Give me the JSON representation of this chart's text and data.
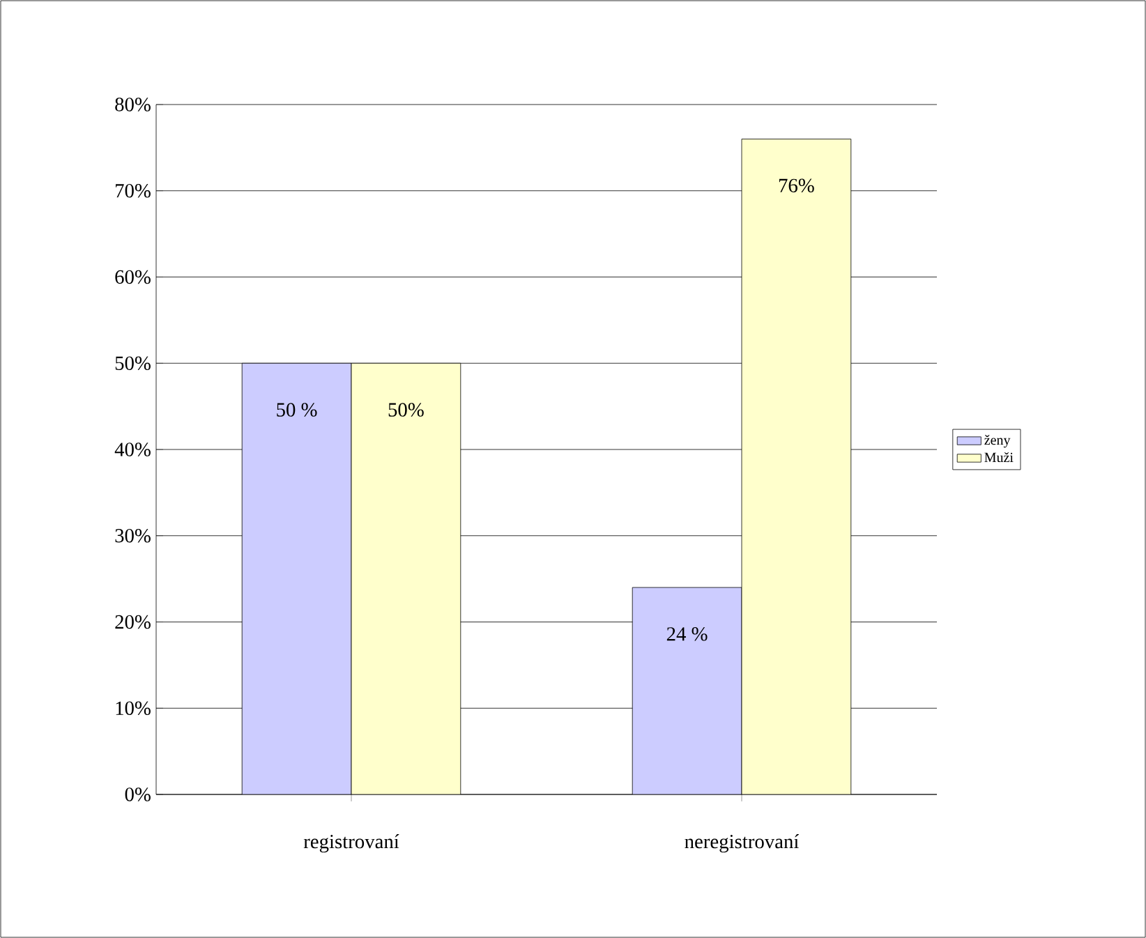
{
  "chart_data": {
    "type": "bar",
    "categories": [
      "registrovaní",
      "neregistrovaní"
    ],
    "series": [
      {
        "name": "ženy",
        "color": "#ccccff",
        "values": [
          50,
          24
        ],
        "value_labels": [
          "50 %",
          "24 %"
        ]
      },
      {
        "name": "Muži",
        "color": "#ffffcc",
        "values": [
          50,
          76
        ],
        "value_labels": [
          "50%",
          "76%"
        ]
      }
    ],
    "ylim": [
      0,
      80
    ],
    "yticks": [
      {
        "value": 0,
        "label": "0%"
      },
      {
        "value": 10,
        "label": "10%"
      },
      {
        "value": 20,
        "label": "20%"
      },
      {
        "value": 30,
        "label": "30%"
      },
      {
        "value": 40,
        "label": "40%"
      },
      {
        "value": 50,
        "label": "50%"
      },
      {
        "value": 60,
        "label": "60%"
      },
      {
        "value": 70,
        "label": "70%"
      },
      {
        "value": 80,
        "label": "80%"
      }
    ],
    "grid": "y",
    "legend": "right"
  }
}
